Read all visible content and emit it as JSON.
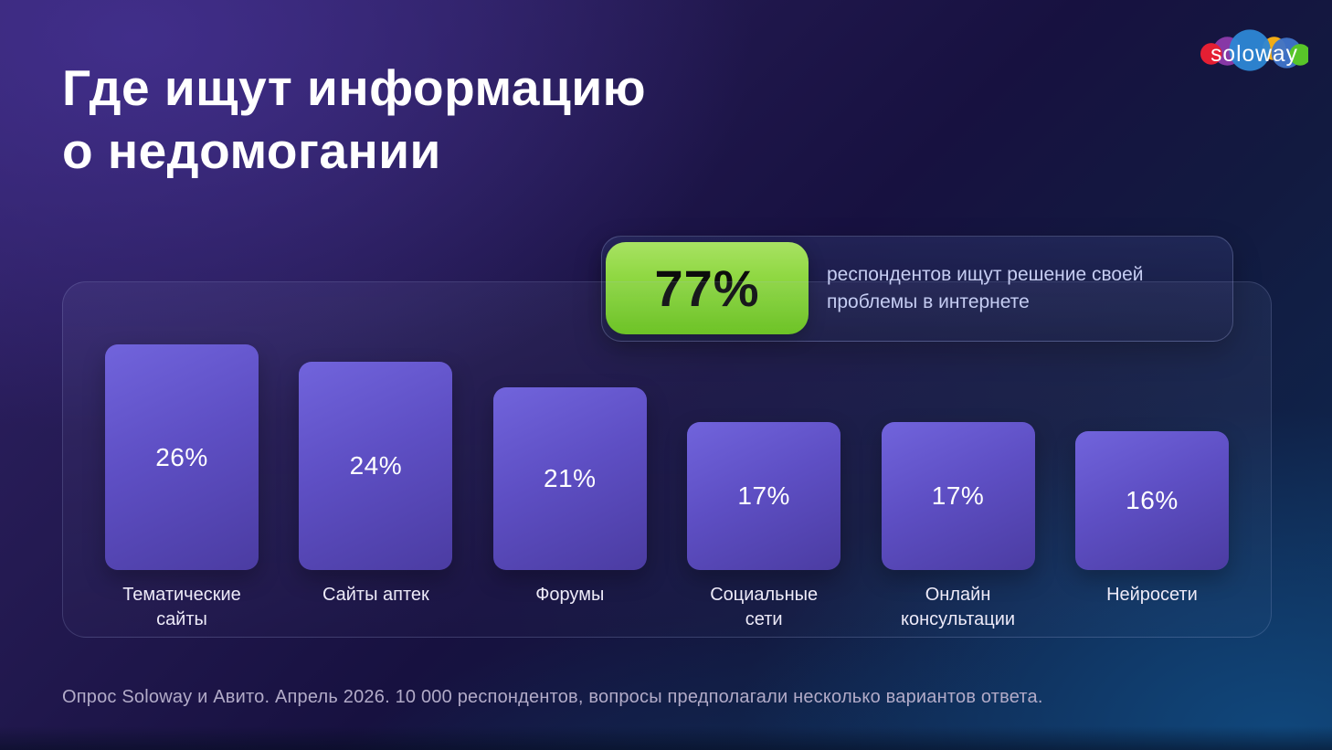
{
  "page": {
    "title_line1": "Где ищут информацию",
    "title_line2": "о недомогании",
    "footnote": "Опрос Soloway и Авито. Апрель 2026. 10 000 респондентов, вопросы предполагали несколько вариантов ответа."
  },
  "logo": {
    "text": "soloway"
  },
  "highlight": {
    "value": "77%",
    "description_line1": "респондентов ищут решение своей",
    "description_line2": "проблемы в интернете"
  },
  "chart_data": {
    "type": "bar",
    "title": "Где ищут информацию о недомогании",
    "categories": [
      "Тематические сайты",
      "Сайты аптек",
      "Форумы",
      "Социальные сети",
      "Онлайн консультации",
      "Нейросети"
    ],
    "category_lines": [
      [
        "Тематические",
        "сайты"
      ],
      [
        "Сайты аптек"
      ],
      [
        "Форумы"
      ],
      [
        "Социальные",
        "сети"
      ],
      [
        "Онлайн",
        "консультации"
      ],
      [
        "Нейросети"
      ]
    ],
    "values": [
      26,
      24,
      21,
      17,
      17,
      16
    ],
    "value_labels": [
      "26%",
      "24%",
      "21%",
      "17%",
      "17%",
      "16%"
    ],
    "unit": "%",
    "ylim": [
      0,
      26
    ],
    "grid": false,
    "legend": false
  },
  "colors": {
    "title-text": "#ffffff",
    "badge-green-top": "#a8e263",
    "badge-green-bottom": "#68c318",
    "badge-value": "#0c0c0c",
    "highlight-text": "#c6cdf2",
    "bar-top": "#7164dc",
    "bar-bottom": "#4b3ca2",
    "footnote-text": "#b2abc8"
  }
}
